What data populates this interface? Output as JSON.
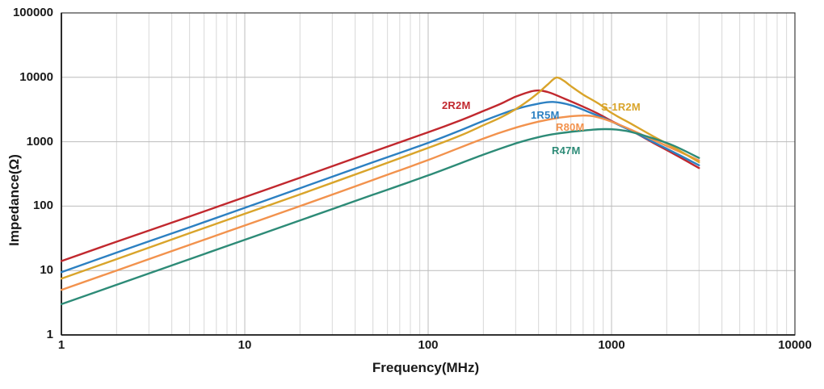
{
  "chart_data": {
    "type": "line",
    "xlabel": "Frequency(MHz)",
    "ylabel": "Impedance(Ω)",
    "x_axis": {
      "scale": "log",
      "min": 1,
      "max": 10000,
      "unit": "MHz",
      "ticks": [
        "1",
        "10",
        "100",
        "1000",
        "10000"
      ]
    },
    "y_axis": {
      "scale": "log",
      "min": 1,
      "max": 100000,
      "unit": "Ω",
      "ticks": [
        "1",
        "10",
        "100",
        "1000",
        "10000",
        "100000"
      ]
    },
    "grid": {
      "x_major": true,
      "x_minor": true,
      "y_major": true,
      "y_minor": false
    },
    "legend_position": "inline-curve-labels",
    "series": [
      {
        "name": "2R2M",
        "color": "#c1282e",
        "points": [
          [
            1,
            14
          ],
          [
            2,
            28
          ],
          [
            5,
            69
          ],
          [
            10,
            138
          ],
          [
            20,
            276
          ],
          [
            50,
            700
          ],
          [
            100,
            1400
          ],
          [
            150,
            2150
          ],
          [
            200,
            3000
          ],
          [
            250,
            3900
          ],
          [
            300,
            5000
          ],
          [
            380,
            6200
          ],
          [
            450,
            5900
          ],
          [
            550,
            4700
          ],
          [
            700,
            3500
          ],
          [
            850,
            2700
          ],
          [
            1000,
            2100
          ],
          [
            1300,
            1450
          ],
          [
            1700,
            950
          ],
          [
            2200,
            640
          ],
          [
            3000,
            390
          ]
        ]
      },
      {
        "name": "1R5M",
        "color": "#2c80c2",
        "points": [
          [
            1,
            9.4
          ],
          [
            2,
            19
          ],
          [
            5,
            47
          ],
          [
            10,
            94
          ],
          [
            20,
            190
          ],
          [
            50,
            480
          ],
          [
            100,
            960
          ],
          [
            150,
            1500
          ],
          [
            200,
            2100
          ],
          [
            300,
            3200
          ],
          [
            400,
            3900
          ],
          [
            480,
            4150
          ],
          [
            600,
            3700
          ],
          [
            750,
            2900
          ],
          [
            900,
            2350
          ],
          [
            1000,
            2050
          ],
          [
            1300,
            1450
          ],
          [
            1700,
            980
          ],
          [
            2200,
            680
          ],
          [
            3000,
            430
          ]
        ]
      },
      {
        "name": "R80M",
        "color": "#f2924d",
        "points": [
          [
            1,
            5
          ],
          [
            2,
            10
          ],
          [
            5,
            25
          ],
          [
            10,
            50
          ],
          [
            20,
            100
          ],
          [
            50,
            255
          ],
          [
            100,
            520
          ],
          [
            200,
            1120
          ],
          [
            300,
            1650
          ],
          [
            400,
            2050
          ],
          [
            500,
            2320
          ],
          [
            600,
            2480
          ],
          [
            700,
            2550
          ],
          [
            800,
            2480
          ],
          [
            1000,
            2050
          ],
          [
            1300,
            1500
          ],
          [
            1700,
            1060
          ],
          [
            2200,
            760
          ],
          [
            3000,
            510
          ]
        ]
      },
      {
        "name": "S-1R2M",
        "color": "#d9a42a",
        "points": [
          [
            1,
            7.5
          ],
          [
            2,
            15
          ],
          [
            5,
            38
          ],
          [
            10,
            76
          ],
          [
            20,
            152
          ],
          [
            50,
            390
          ],
          [
            100,
            800
          ],
          [
            150,
            1250
          ],
          [
            200,
            1800
          ],
          [
            250,
            2400
          ],
          [
            300,
            3200
          ],
          [
            350,
            4300
          ],
          [
            400,
            5800
          ],
          [
            450,
            7800
          ],
          [
            500,
            9900
          ],
          [
            550,
            8800
          ],
          [
            600,
            7300
          ],
          [
            700,
            5400
          ],
          [
            850,
            3900
          ],
          [
            1000,
            2800
          ],
          [
            1300,
            1850
          ],
          [
            1700,
            1200
          ],
          [
            2200,
            810
          ],
          [
            3000,
            480
          ]
        ]
      },
      {
        "name": "R47M",
        "color": "#2d8b77",
        "points": [
          [
            1,
            3
          ],
          [
            2,
            6
          ],
          [
            5,
            15
          ],
          [
            10,
            30
          ],
          [
            20,
            60
          ],
          [
            50,
            150
          ],
          [
            100,
            300
          ],
          [
            200,
            630
          ],
          [
            300,
            940
          ],
          [
            400,
            1180
          ],
          [
            500,
            1330
          ],
          [
            650,
            1460
          ],
          [
            800,
            1540
          ],
          [
            930,
            1570
          ],
          [
            1100,
            1530
          ],
          [
            1300,
            1400
          ],
          [
            1700,
            1120
          ],
          [
            2200,
            860
          ],
          [
            3000,
            560
          ]
        ]
      }
    ]
  },
  "colors": {
    "background": "#ffffff",
    "grid_major": "#bcbcbc",
    "grid_minor": "#d8d8d8",
    "border": "#3c3c3c",
    "axis": "#1a1a1a",
    "text": "#1a1a1a"
  }
}
